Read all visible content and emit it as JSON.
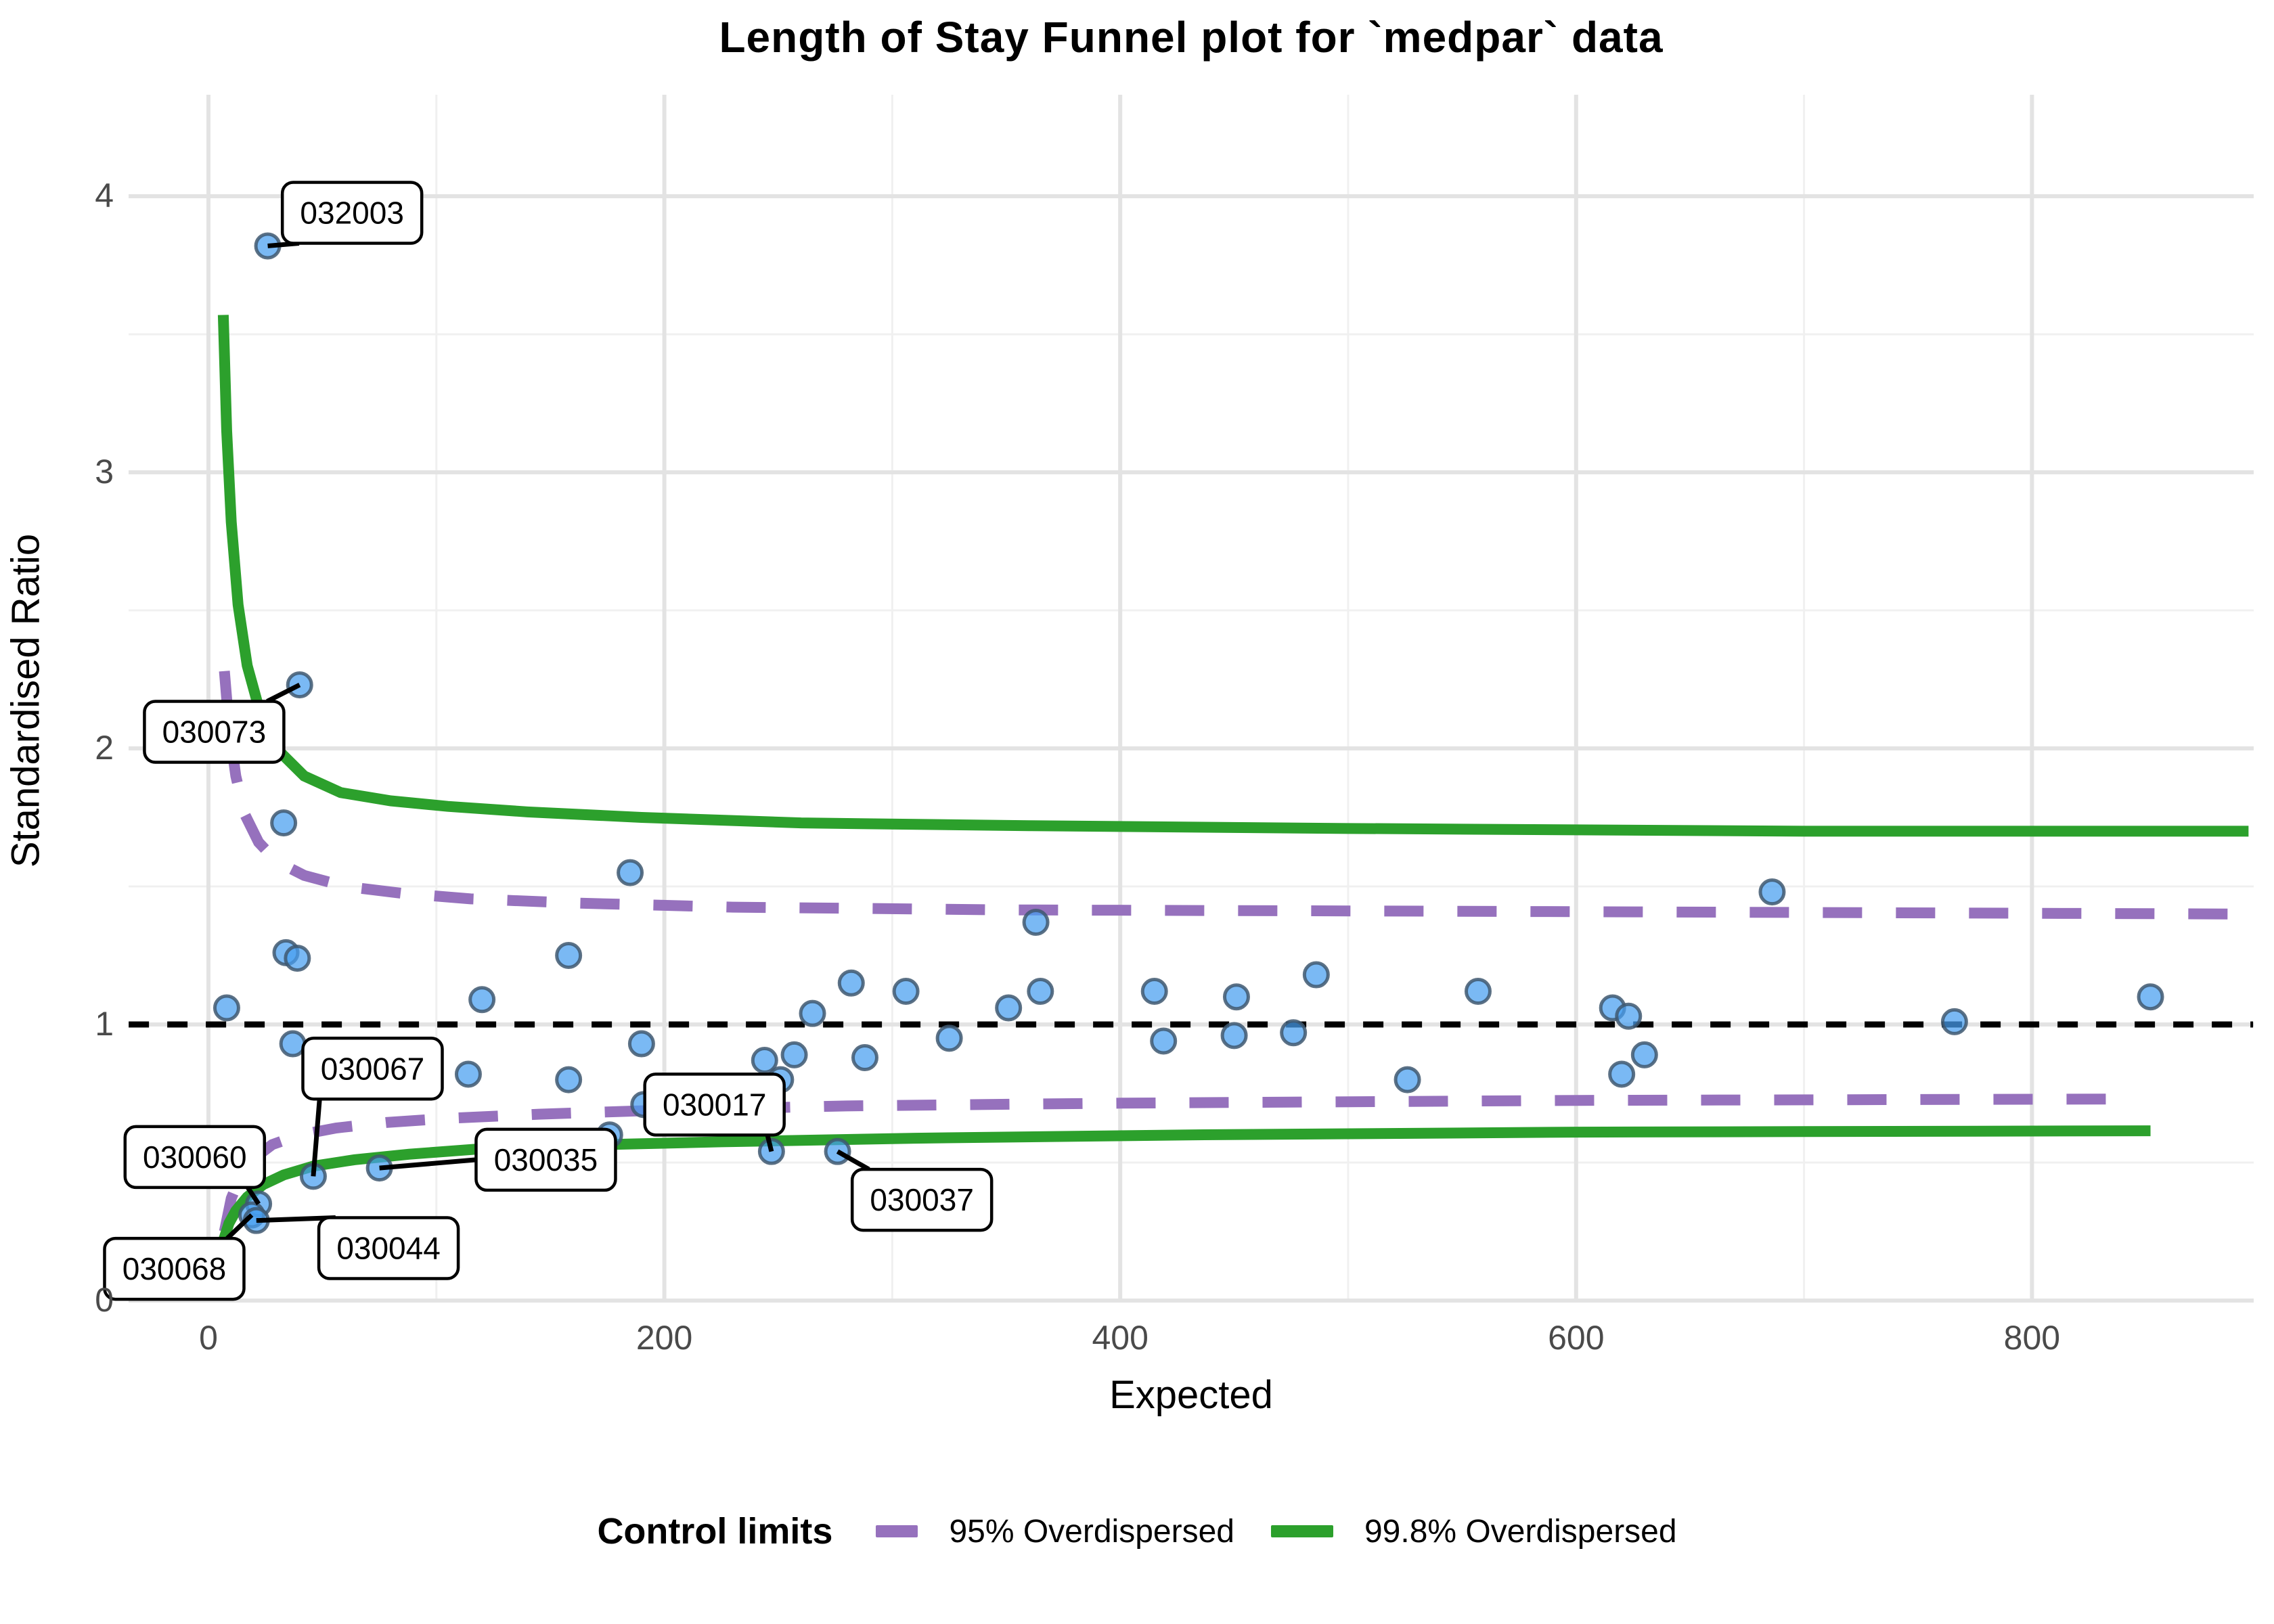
{
  "title": "Length of Stay Funnel plot for `medpar` data",
  "colors": {
    "point_fill": "rgba(70,158,240,0.72)",
    "point_stroke": "rgba(64,88,112,0.85)",
    "green": "#2ca02c",
    "purple": "#9671bd",
    "reference": "#000000",
    "grid_major": "#e3e3e3",
    "grid_minor": "#f0f0f0",
    "tick_text": "#4a4a4a",
    "label_box_bg": "#ffffff",
    "label_box_border": "#000000"
  },
  "chart_data": {
    "type": "scatter",
    "title": "Length of Stay Funnel plot for `medpar` data",
    "xlabel": "Expected",
    "ylabel": "Standardised Ratio",
    "xlim": [
      -35,
      897
    ],
    "ylim": [
      0,
      4.37
    ],
    "x_ticks": [
      0,
      200,
      400,
      600,
      800
    ],
    "y_ticks": [
      0,
      1,
      2,
      3,
      4
    ],
    "x_minor": [
      100,
      300,
      500,
      700
    ],
    "y_minor": [
      0.5,
      1.5,
      2.5,
      3.5
    ],
    "grid": true,
    "reference_line_y": 1,
    "points": [
      [
        26,
        3.82
      ],
      [
        40,
        2.23
      ],
      [
        33,
        1.73
      ],
      [
        185,
        1.55
      ],
      [
        34,
        1.26
      ],
      [
        39,
        1.24
      ],
      [
        158,
        1.25
      ],
      [
        8,
        1.06
      ],
      [
        120,
        1.09
      ],
      [
        37,
        0.93
      ],
      [
        190,
        0.93
      ],
      [
        114,
        0.82
      ],
      [
        158,
        0.8
      ],
      [
        46,
        0.45
      ],
      [
        75,
        0.48
      ],
      [
        176,
        0.6
      ],
      [
        191,
        0.71
      ],
      [
        22,
        0.35
      ],
      [
        19,
        0.31
      ],
      [
        21,
        0.29
      ],
      [
        247,
        0.54
      ],
      [
        276,
        0.54
      ],
      [
        244,
        0.87
      ],
      [
        257,
        0.89
      ],
      [
        251,
        0.8
      ],
      [
        265,
        1.04
      ],
      [
        282,
        1.15
      ],
      [
        288,
        0.88
      ],
      [
        306,
        1.12
      ],
      [
        325,
        0.95
      ],
      [
        351,
        1.06
      ],
      [
        365,
        1.12
      ],
      [
        415,
        1.12
      ],
      [
        419,
        0.94
      ],
      [
        363,
        1.37
      ],
      [
        451,
        1.1
      ],
      [
        450,
        0.96
      ],
      [
        486,
        1.18
      ],
      [
        476,
        0.97
      ],
      [
        557,
        1.12
      ],
      [
        616,
        1.06
      ],
      [
        623,
        1.03
      ],
      [
        630,
        0.89
      ],
      [
        620,
        0.82
      ],
      [
        526,
        0.8
      ],
      [
        686,
        1.48
      ],
      [
        766,
        1.01
      ],
      [
        852,
        1.1
      ]
    ],
    "curves": [
      {
        "name": "95% Overdispersed",
        "style": "dashed",
        "color": "#9671bd",
        "upper": [
          [
            7,
            2.28
          ],
          [
            9,
            2.08
          ],
          [
            12,
            1.9
          ],
          [
            16,
            1.76
          ],
          [
            22,
            1.66
          ],
          [
            30,
            1.59
          ],
          [
            42,
            1.54
          ],
          [
            60,
            1.5
          ],
          [
            85,
            1.475
          ],
          [
            115,
            1.455
          ],
          [
            160,
            1.44
          ],
          [
            230,
            1.425
          ],
          [
            350,
            1.415
          ],
          [
            550,
            1.41
          ],
          [
            895,
            1.4
          ]
        ],
        "lower": [
          [
            7,
            0.25
          ],
          [
            10,
            0.37
          ],
          [
            14,
            0.45
          ],
          [
            20,
            0.515
          ],
          [
            28,
            0.565
          ],
          [
            40,
            0.6
          ],
          [
            56,
            0.625
          ],
          [
            78,
            0.645
          ],
          [
            105,
            0.66
          ],
          [
            145,
            0.675
          ],
          [
            200,
            0.69
          ],
          [
            280,
            0.705
          ],
          [
            400,
            0.715
          ],
          [
            600,
            0.725
          ],
          [
            843,
            0.73
          ]
        ]
      },
      {
        "name": "99.8% Overdispersed",
        "style": "solid",
        "color": "#2ca02c",
        "upper": [
          [
            6.5,
            3.57
          ],
          [
            8,
            3.15
          ],
          [
            10,
            2.82
          ],
          [
            13,
            2.52
          ],
          [
            17,
            2.3
          ],
          [
            23,
            2.12
          ],
          [
            31,
            1.99
          ],
          [
            42,
            1.9
          ],
          [
            58,
            1.84
          ],
          [
            80,
            1.81
          ],
          [
            105,
            1.79
          ],
          [
            140,
            1.77
          ],
          [
            190,
            1.75
          ],
          [
            260,
            1.73
          ],
          [
            360,
            1.72
          ],
          [
            500,
            1.71
          ],
          [
            700,
            1.7
          ],
          [
            895,
            1.7
          ]
        ],
        "lower": [
          [
            6.5,
            0.215
          ],
          [
            9,
            0.28
          ],
          [
            12,
            0.325
          ],
          [
            17,
            0.375
          ],
          [
            24,
            0.42
          ],
          [
            33,
            0.455
          ],
          [
            46,
            0.487
          ],
          [
            64,
            0.51
          ],
          [
            88,
            0.53
          ],
          [
            120,
            0.55
          ],
          [
            165,
            0.563
          ],
          [
            225,
            0.575
          ],
          [
            310,
            0.588
          ],
          [
            430,
            0.6
          ],
          [
            600,
            0.61
          ],
          [
            852,
            0.615
          ]
        ]
      }
    ],
    "annotations": [
      {
        "text": "032003",
        "box_x": 63,
        "box_y": 3.94,
        "point_x": 26,
        "point_y": 3.82,
        "attach": "bottom-left"
      },
      {
        "text": "030073",
        "box_x": 2.5,
        "box_y": 2.06,
        "point_x": 40,
        "point_y": 2.23,
        "attach": "top-right"
      },
      {
        "text": "030067",
        "box_x": 72,
        "box_y": 0.84,
        "point_x": 46,
        "point_y": 0.45,
        "attach": "bottom-left"
      },
      {
        "text": "030060",
        "box_x": -6,
        "box_y": 0.52,
        "point_x": 22,
        "point_y": 0.35,
        "attach": "bottom-right"
      },
      {
        "text": "030068",
        "box_x": -15,
        "box_y": 0.115,
        "point_x": 19,
        "point_y": 0.31,
        "attach": "top-right"
      },
      {
        "text": "030044",
        "box_x": 79,
        "box_y": 0.19,
        "point_x": 21,
        "point_y": 0.29,
        "attach": "top-left"
      },
      {
        "text": "030035",
        "box_x": 148,
        "box_y": 0.51,
        "point_x": 75,
        "point_y": 0.48,
        "attach": "left"
      },
      {
        "text": "030017",
        "box_x": 222,
        "box_y": 0.71,
        "point_x": 247,
        "point_y": 0.54,
        "attach": "bottom-right"
      },
      {
        "text": "030037",
        "box_x": 313,
        "box_y": 0.365,
        "point_x": 276,
        "point_y": 0.54,
        "attach": "top-left"
      }
    ],
    "legend": {
      "title": "Control limits",
      "position": "bottom",
      "entries": [
        {
          "label": "95% Overdispersed",
          "color": "#9671bd",
          "style": "dashed"
        },
        {
          "label": "99.8% Overdispersed",
          "color": "#2ca02c",
          "style": "solid"
        }
      ]
    }
  }
}
